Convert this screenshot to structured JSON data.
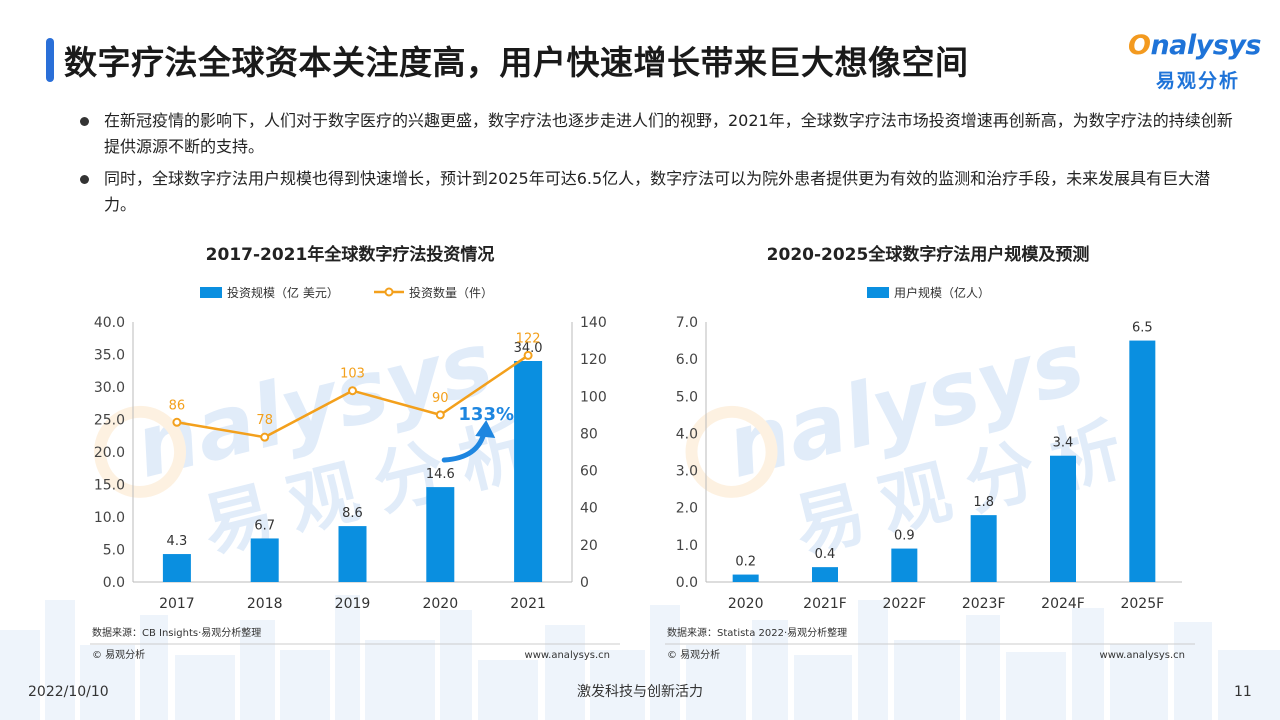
{
  "page": {
    "title": "数字疗法全球资本关注度高，用户快速增长带来巨大想像空间",
    "logo": {
      "latin_prefix": "O",
      "latin_rest": "nalysys",
      "cn": "易观分析"
    },
    "bullets": [
      "在新冠疫情的影响下，人们对于数字医疗的兴趣更盛，数字疗法也逐步走进人们的视野，2021年，全球数字疗法市场投资增速再创新高，为数字疗法的持续创新提供源源不断的支持。",
      "同时，全球数字疗法用户规模也得到快速增长，预计到2025年可达6.5亿人，数字疗法可以为院外患者提供更为有效的监测和治疗手段，未来发展具有巨大潜力。"
    ],
    "footer": {
      "date": "2022/10/10",
      "slogan": "激发科技与创新活力",
      "page_number": "11"
    }
  },
  "colors": {
    "bar": "#0a8fe0",
    "line": "#f3a01c",
    "accent_title_bar": "#2a6fd8",
    "logo_blue": "#1e73d8",
    "logo_orange": "#f39a1f"
  },
  "chart_data": [
    {
      "type": "bar",
      "title": "2017-2021年全球数字疗法投资情况",
      "categories": [
        "2017",
        "2018",
        "2019",
        "2020",
        "2021"
      ],
      "series": [
        {
          "name": "投资规模（亿 美元）",
          "type": "bar",
          "axis": "left",
          "values": [
            4.3,
            6.7,
            8.6,
            14.6,
            34.0
          ],
          "labels": [
            "4.3",
            "6.7",
            "8.6",
            "14.6",
            "34.0"
          ]
        },
        {
          "name": "投资数量（件）",
          "type": "line",
          "axis": "right",
          "values": [
            86,
            78,
            103,
            90,
            122
          ],
          "labels": [
            "86",
            "78",
            "103",
            "90",
            "122"
          ]
        }
      ],
      "y_left": {
        "range": [
          0,
          40
        ],
        "ticks": [
          "0.0",
          "5.0",
          "10.0",
          "15.0",
          "20.0",
          "25.0",
          "30.0",
          "35.0",
          "40.0"
        ]
      },
      "y_right": {
        "range": [
          0,
          140
        ],
        "ticks": [
          "0",
          "20",
          "40",
          "60",
          "80",
          "100",
          "120",
          "140"
        ]
      },
      "annotation": "133%",
      "legend_position": "top",
      "grid": false,
      "source": "数据来源：CB Insights·易观分析整理",
      "copyright": "© 易观分析",
      "website": "www.analysys.cn"
    },
    {
      "type": "bar",
      "title": "2020-2025全球数字疗法用户规模及预测",
      "categories": [
        "2020",
        "2021F",
        "2022F",
        "2023F",
        "2024F",
        "2025F"
      ],
      "series": [
        {
          "name": "用户规模（亿人）",
          "type": "bar",
          "axis": "left",
          "values": [
            0.2,
            0.4,
            0.9,
            1.8,
            3.4,
            6.5
          ],
          "labels": [
            "0.2",
            "0.4",
            "0.9",
            "1.8",
            "3.4",
            "6.5"
          ]
        }
      ],
      "y_left": {
        "range": [
          0,
          7
        ],
        "ticks": [
          "0.0",
          "1.0",
          "2.0",
          "3.0",
          "4.0",
          "5.0",
          "6.0",
          "7.0"
        ]
      },
      "legend_position": "top",
      "grid": false,
      "source": "数据来源：Statista 2022·易观分析整理",
      "copyright": "© 易观分析",
      "website": "www.analysys.cn"
    }
  ]
}
